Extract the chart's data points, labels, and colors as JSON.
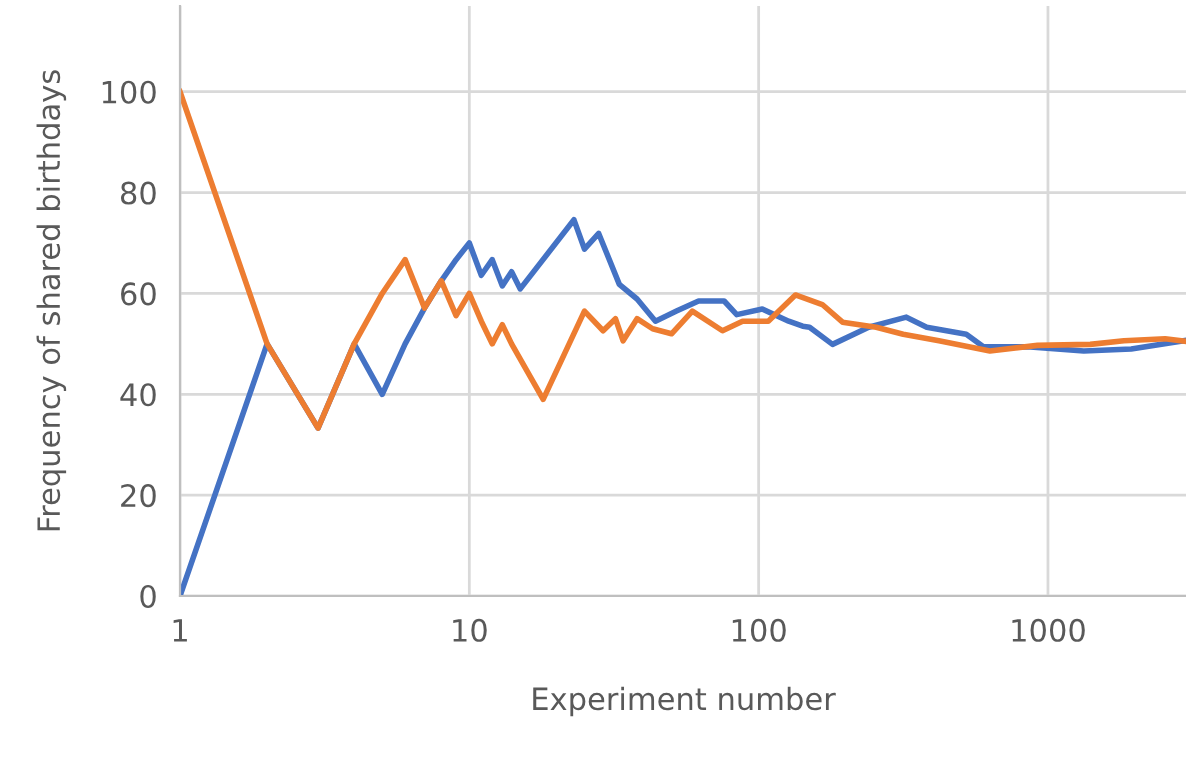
{
  "chart_data": {
    "type": "line",
    "xlabel": "Experiment number",
    "ylabel": "Frequency of shared birthdays",
    "log": "x",
    "xlim": [
      1,
      3000
    ],
    "xticks": [
      1,
      10,
      100,
      1000
    ],
    "ylim": [
      0,
      117
    ],
    "yticks": [
      0,
      20,
      40,
      60,
      80,
      100
    ],
    "grid": true,
    "legend": false,
    "marker": "none",
    "line_style": "solid",
    "series": [
      {
        "color": "#4472c4",
        "x": [
          1,
          2,
          3,
          4,
          5,
          6,
          7,
          8,
          9,
          10,
          11,
          12,
          13,
          14,
          15,
          23,
          25,
          28,
          33,
          38,
          44,
          52,
          62,
          76,
          84,
          103,
          127,
          142,
          150,
          180,
          240,
          324,
          381,
          522,
          600,
          870,
          1330,
          1940,
          3000
        ],
        "values": [
          0,
          50,
          33.3,
          50,
          40,
          50,
          57.1,
          62.5,
          66.7,
          70,
          63.6,
          66.7,
          61.5,
          64.3,
          60.9,
          74.6,
          68.8,
          71.9,
          61.8,
          58.9,
          54.5,
          56.5,
          58.5,
          58.5,
          55.8,
          56.9,
          54.5,
          53.5,
          53.3,
          49.9,
          53.3,
          55.3,
          53.3,
          51.9,
          49.4,
          49.4,
          48.6,
          49,
          50.7
        ]
      },
      {
        "color": "#ed7d31",
        "x": [
          1,
          2,
          3,
          4,
          5,
          6,
          7,
          8,
          9,
          10,
          11,
          12,
          13,
          14,
          18,
          25,
          29,
          32,
          34,
          38,
          43,
          50,
          59,
          75,
          88,
          108,
          134,
          166,
          195,
          255,
          316,
          420,
          630,
          920,
          1400,
          1830,
          2540,
          3000
        ],
        "values": [
          100,
          50,
          33.3,
          50,
          60,
          66.7,
          57.1,
          62.5,
          55.6,
          60,
          54.5,
          50,
          53.8,
          50,
          39,
          56.5,
          52.6,
          55,
          50.6,
          55,
          53,
          52,
          56.5,
          52.6,
          54.5,
          54.5,
          59.7,
          57.8,
          54.3,
          53.3,
          51.9,
          50.6,
          48.6,
          49.7,
          49.9,
          50.6,
          51,
          50.5
        ]
      }
    ]
  }
}
